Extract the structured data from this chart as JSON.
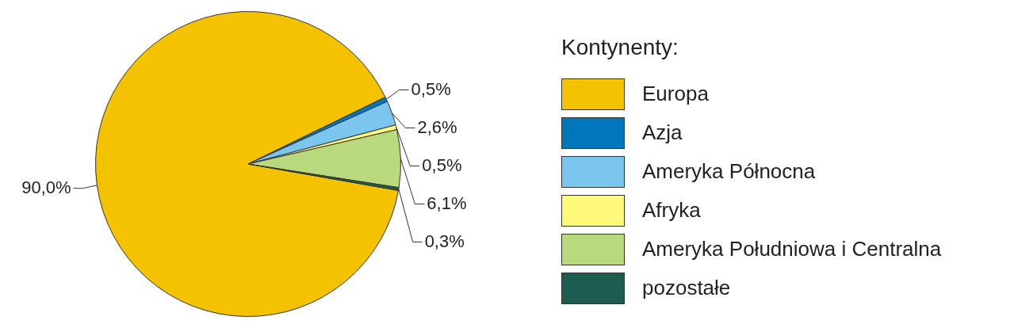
{
  "chart_data": {
    "type": "pie",
    "legend_title": "Kontynenty:",
    "legend": "right",
    "categories": [
      "Europa",
      "Azja",
      "Ameryka Północna",
      "Afryka",
      "Ameryka Południowa i Centralna",
      "pozostałe"
    ],
    "values": [
      90.0,
      0.5,
      2.6,
      0.5,
      6.1,
      0.3
    ],
    "value_labels": [
      "90,0%",
      "0,5%",
      "2,6%",
      "0,5%",
      "6,1%",
      "0,3%"
    ],
    "colors": [
      "#f5c200",
      "#0077bb",
      "#7ac6ef",
      "#fff97a",
      "#b8d97c",
      "#1e5c50"
    ]
  }
}
